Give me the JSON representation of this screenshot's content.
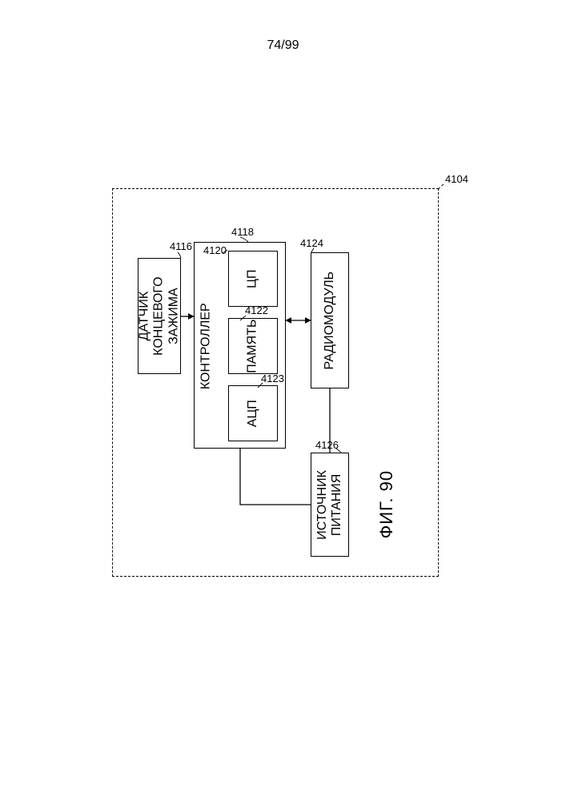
{
  "page": {
    "number": "74/99"
  },
  "figure": {
    "caption": "ФИГ. 90"
  },
  "outer": {
    "ref": "4104"
  },
  "sensor": {
    "ref": "4116",
    "label": "ДАТЧИК\nКОНЦЕВОГО\nЗАЖИМА"
  },
  "controller": {
    "ref": "4118",
    "label": "КОНТРОЛЛЕР",
    "cpu": {
      "ref": "4120",
      "label": "ЦП"
    },
    "memory": {
      "ref": "4122",
      "label": "ПАМЯТЬ"
    },
    "adc": {
      "ref": "4123",
      "label": "АЦП"
    }
  },
  "radio": {
    "ref": "4124",
    "label": "РАДИОМОДУЛЬ"
  },
  "power": {
    "ref": "4126",
    "label": "ИСТОЧНИК\nПИТАНИЯ"
  },
  "style": {
    "stroke": "#000000",
    "background": "#ffffff",
    "font_main": 14,
    "font_ref": 13,
    "font_caption": 22
  }
}
